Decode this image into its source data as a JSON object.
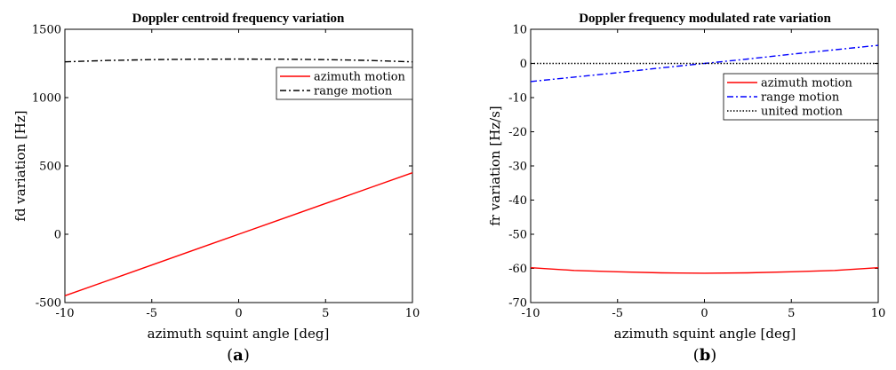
{
  "chart_data": [
    {
      "type": "line",
      "title": "Doppler centroid frequency variation",
      "xlabel": "azimuth squint angle [deg]",
      "ylabel": "fd variation [Hz]",
      "xlim": [
        -10,
        10
      ],
      "ylim": [
        -500,
        1500
      ],
      "xticks": [
        -10,
        -5,
        0,
        5,
        10
      ],
      "yticks": [
        -500,
        0,
        500,
        1000,
        1500
      ],
      "x": [
        -10,
        -7.5,
        -5,
        -2.5,
        0,
        2.5,
        5,
        7.5,
        10
      ],
      "series": [
        {
          "name": "azimuth motion",
          "color": "#ff0000",
          "dash": "solid",
          "values": [
            -450,
            -337.5,
            -225,
            -112.5,
            0,
            112.5,
            225,
            337.5,
            450
          ]
        },
        {
          "name": "range motion",
          "color": "#000000",
          "dash": "dashdot",
          "values": [
            1262,
            1272,
            1278,
            1281,
            1282,
            1281,
            1278,
            1272,
            1262
          ]
        }
      ],
      "legend": "top-right",
      "grid": false,
      "caption_letter": "a"
    },
    {
      "type": "line",
      "title": "Doppler frequency modulated rate variation",
      "xlabel": "azimuth squint angle [deg]",
      "ylabel": "fr variation [Hz/s]",
      "xlim": [
        -10,
        10
      ],
      "ylim": [
        -70,
        10
      ],
      "xticks": [
        -10,
        -5,
        0,
        5,
        10
      ],
      "yticks": [
        -70,
        -60,
        -50,
        -40,
        -30,
        -20,
        -10,
        0,
        10
      ],
      "x": [
        -10,
        -7.5,
        -5,
        -2.5,
        0,
        2.5,
        5,
        7.5,
        10
      ],
      "series": [
        {
          "name": "azimuth motion",
          "color": "#ff0000",
          "dash": "solid",
          "values": [
            -59.8,
            -60.6,
            -61.0,
            -61.3,
            -61.4,
            -61.3,
            -61.0,
            -60.6,
            -59.8
          ]
        },
        {
          "name": "range motion",
          "color": "#0000ff",
          "dash": "dashdot",
          "values": [
            -5.3,
            -4.0,
            -2.7,
            -1.3,
            0,
            1.3,
            2.7,
            4.0,
            5.3
          ]
        },
        {
          "name": "united motion",
          "color": "#000000",
          "dash": "dotted",
          "values": [
            0,
            0,
            0,
            0,
            0,
            0,
            0,
            0,
            0
          ]
        }
      ],
      "legend": "top-right",
      "grid": false,
      "caption_letter": "b"
    }
  ],
  "colors": {
    "axis": "#000000",
    "background": "#ffffff"
  }
}
